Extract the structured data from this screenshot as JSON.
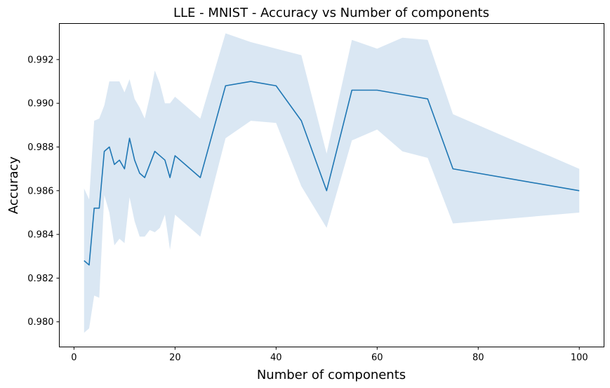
{
  "chart_data": {
    "type": "line",
    "title": "LLE - MNIST - Accuracy vs Number of components",
    "xlabel": "Number of components",
    "ylabel": "Accuracy",
    "xlim": [
      -2.9,
      104.9
    ],
    "ylim": [
      0.97885,
      0.99365
    ],
    "xticks": [
      0,
      20,
      40,
      60,
      80,
      100
    ],
    "xtick_labels": [
      "0",
      "20",
      "40",
      "60",
      "80",
      "100"
    ],
    "yticks": [
      0.98,
      0.982,
      0.984,
      0.986,
      0.988,
      0.99,
      0.992
    ],
    "ytick_labels": [
      "0.980",
      "0.982",
      "0.984",
      "0.986",
      "0.988",
      "0.990",
      "0.992"
    ],
    "grid": false,
    "legend": "none",
    "line_color": "#1f77b4",
    "band_color": "#dae7f3",
    "series": [
      {
        "x": [
          2,
          3,
          4,
          5,
          6,
          7,
          8,
          9,
          10,
          11,
          12,
          13,
          14,
          15,
          16,
          17,
          18,
          19,
          20,
          25,
          30,
          35,
          40,
          45,
          50,
          55,
          60,
          65,
          70,
          75,
          100
        ],
        "mean": [
          0.9828,
          0.9826,
          0.9852,
          0.9852,
          0.9878,
          0.988,
          0.9872,
          0.9874,
          0.987,
          0.9884,
          0.9874,
          0.9868,
          0.9866,
          0.9872,
          0.9878,
          0.9876,
          0.9874,
          0.9866,
          0.9876,
          0.9866,
          0.9908,
          0.991,
          0.9908,
          0.9892,
          0.986,
          0.9906,
          0.9906,
          0.9904,
          0.9902,
          0.987,
          0.986
        ],
        "upper": [
          0.9861,
          0.9856,
          0.9892,
          0.9893,
          0.9899,
          0.991,
          0.991,
          0.991,
          0.9905,
          0.9911,
          0.9902,
          0.9898,
          0.9893,
          0.9903,
          0.9915,
          0.9909,
          0.99,
          0.99,
          0.9903,
          0.9893,
          0.9932,
          0.9928,
          0.9925,
          0.9922,
          0.9877,
          0.9929,
          0.9925,
          0.993,
          0.9929,
          0.9895,
          0.987
        ],
        "lower": [
          0.9795,
          0.9797,
          0.9812,
          0.9811,
          0.9858,
          0.985,
          0.9835,
          0.9838,
          0.9836,
          0.9857,
          0.9846,
          0.9839,
          0.9839,
          0.9842,
          0.9841,
          0.9843,
          0.9849,
          0.9833,
          0.9849,
          0.9839,
          0.9884,
          0.9892,
          0.9891,
          0.9862,
          0.9843,
          0.9883,
          0.9888,
          0.9878,
          0.9875,
          0.9845,
          0.985
        ]
      }
    ]
  }
}
